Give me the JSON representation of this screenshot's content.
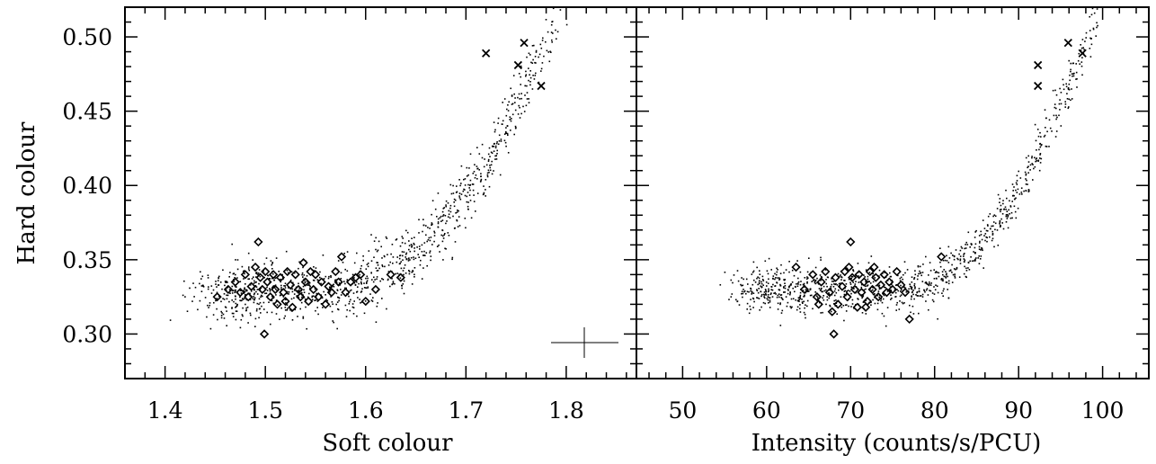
{
  "chart_data": [
    {
      "type": "scatter",
      "xlabel": "Soft colour",
      "ylabel": "Hard colour",
      "xlim": [
        1.36,
        1.87
      ],
      "ylim": [
        0.27,
        0.52
      ],
      "xticks": [
        "1.4",
        "1.5",
        "1.6",
        "1.7",
        "1.8"
      ],
      "yticks": [
        "0.30",
        "0.35",
        "0.40",
        "0.45",
        "0.50"
      ],
      "xtick_values": [
        1.4,
        1.5,
        1.6,
        1.7,
        1.8
      ],
      "ytick_values": [
        0.3,
        0.35,
        0.4,
        0.45,
        0.5
      ],
      "series": [
        {
          "marker": "diamond",
          "points": [
            [
              1.452,
              0.325
            ],
            [
              1.463,
              0.33
            ],
            [
              1.47,
              0.335
            ],
            [
              1.475,
              0.328
            ],
            [
              1.48,
              0.34
            ],
            [
              1.483,
              0.325
            ],
            [
              1.486,
              0.332
            ],
            [
              1.49,
              0.345
            ],
            [
              1.493,
              0.362
            ],
            [
              1.495,
              0.338
            ],
            [
              1.497,
              0.33
            ],
            [
              1.499,
              0.3
            ],
            [
              1.5,
              0.342
            ],
            [
              1.502,
              0.335
            ],
            [
              1.505,
              0.325
            ],
            [
              1.508,
              0.34
            ],
            [
              1.51,
              0.33
            ],
            [
              1.512,
              0.32
            ],
            [
              1.515,
              0.338
            ],
            [
              1.518,
              0.328
            ],
            [
              1.52,
              0.322
            ],
            [
              1.522,
              0.342
            ],
            [
              1.525,
              0.333
            ],
            [
              1.527,
              0.318
            ],
            [
              1.53,
              0.34
            ],
            [
              1.533,
              0.33
            ],
            [
              1.535,
              0.325
            ],
            [
              1.538,
              0.348
            ],
            [
              1.54,
              0.335
            ],
            [
              1.543,
              0.322
            ],
            [
              1.545,
              0.342
            ],
            [
              1.548,
              0.33
            ],
            [
              1.55,
              0.34
            ],
            [
              1.553,
              0.325
            ],
            [
              1.556,
              0.335
            ],
            [
              1.56,
              0.32
            ],
            [
              1.563,
              0.332
            ],
            [
              1.566,
              0.328
            ],
            [
              1.57,
              0.342
            ],
            [
              1.573,
              0.335
            ],
            [
              1.576,
              0.352
            ],
            [
              1.58,
              0.328
            ],
            [
              1.585,
              0.335
            ],
            [
              1.59,
              0.338
            ],
            [
              1.595,
              0.34
            ],
            [
              1.6,
              0.322
            ],
            [
              1.61,
              0.33
            ],
            [
              1.625,
              0.34
            ],
            [
              1.635,
              0.338
            ]
          ]
        },
        {
          "marker": "cross",
          "points": [
            [
              1.72,
              0.489
            ],
            [
              1.752,
              0.481
            ],
            [
              1.758,
              0.496
            ],
            [
              1.775,
              0.467
            ]
          ]
        }
      ]
    },
    {
      "type": "scatter",
      "xlabel": "Intensity (counts/s/PCU)",
      "ylabel": "",
      "xlim": [
        44.5,
        105.5
      ],
      "ylim": [
        0.27,
        0.52
      ],
      "xticks": [
        "50",
        "60",
        "70",
        "80",
        "90",
        "100"
      ],
      "yticks": [],
      "xtick_values": [
        50,
        60,
        70,
        80,
        90,
        100
      ],
      "ytick_values": [
        0.3,
        0.35,
        0.4,
        0.45,
        0.5
      ],
      "series": [
        {
          "marker": "diamond",
          "points": [
            [
              63.5,
              0.345
            ],
            [
              64.5,
              0.33
            ],
            [
              65.5,
              0.34
            ],
            [
              66.0,
              0.325
            ],
            [
              66.5,
              0.335
            ],
            [
              67.0,
              0.342
            ],
            [
              67.5,
              0.328
            ],
            [
              68.0,
              0.3
            ],
            [
              68.2,
              0.338
            ],
            [
              68.5,
              0.32
            ],
            [
              69.0,
              0.332
            ],
            [
              69.3,
              0.342
            ],
            [
              69.6,
              0.325
            ],
            [
              70.0,
              0.362
            ],
            [
              70.2,
              0.338
            ],
            [
              70.5,
              0.33
            ],
            [
              70.8,
              0.318
            ],
            [
              71.0,
              0.34
            ],
            [
              71.3,
              0.328
            ],
            [
              71.6,
              0.335
            ],
            [
              72.0,
              0.322
            ],
            [
              72.3,
              0.342
            ],
            [
              72.6,
              0.33
            ],
            [
              73.0,
              0.338
            ],
            [
              73.3,
              0.325
            ],
            [
              73.6,
              0.333
            ],
            [
              74.0,
              0.34
            ],
            [
              74.3,
              0.328
            ],
            [
              74.6,
              0.335
            ],
            [
              75.0,
              0.33
            ],
            [
              75.5,
              0.342
            ],
            [
              76.0,
              0.333
            ],
            [
              76.5,
              0.328
            ],
            [
              77.0,
              0.31
            ],
            [
              80.8,
              0.352
            ],
            [
              66.2,
              0.32
            ],
            [
              67.8,
              0.315
            ],
            [
              69.8,
              0.345
            ],
            [
              71.8,
              0.318
            ],
            [
              72.8,
              0.345
            ]
          ]
        },
        {
          "marker": "cross",
          "points": [
            [
              92.3,
              0.481
            ],
            [
              92.3,
              0.467
            ],
            [
              95.9,
              0.496
            ],
            [
              97.6,
              0.489
            ]
          ]
        }
      ]
    }
  ]
}
